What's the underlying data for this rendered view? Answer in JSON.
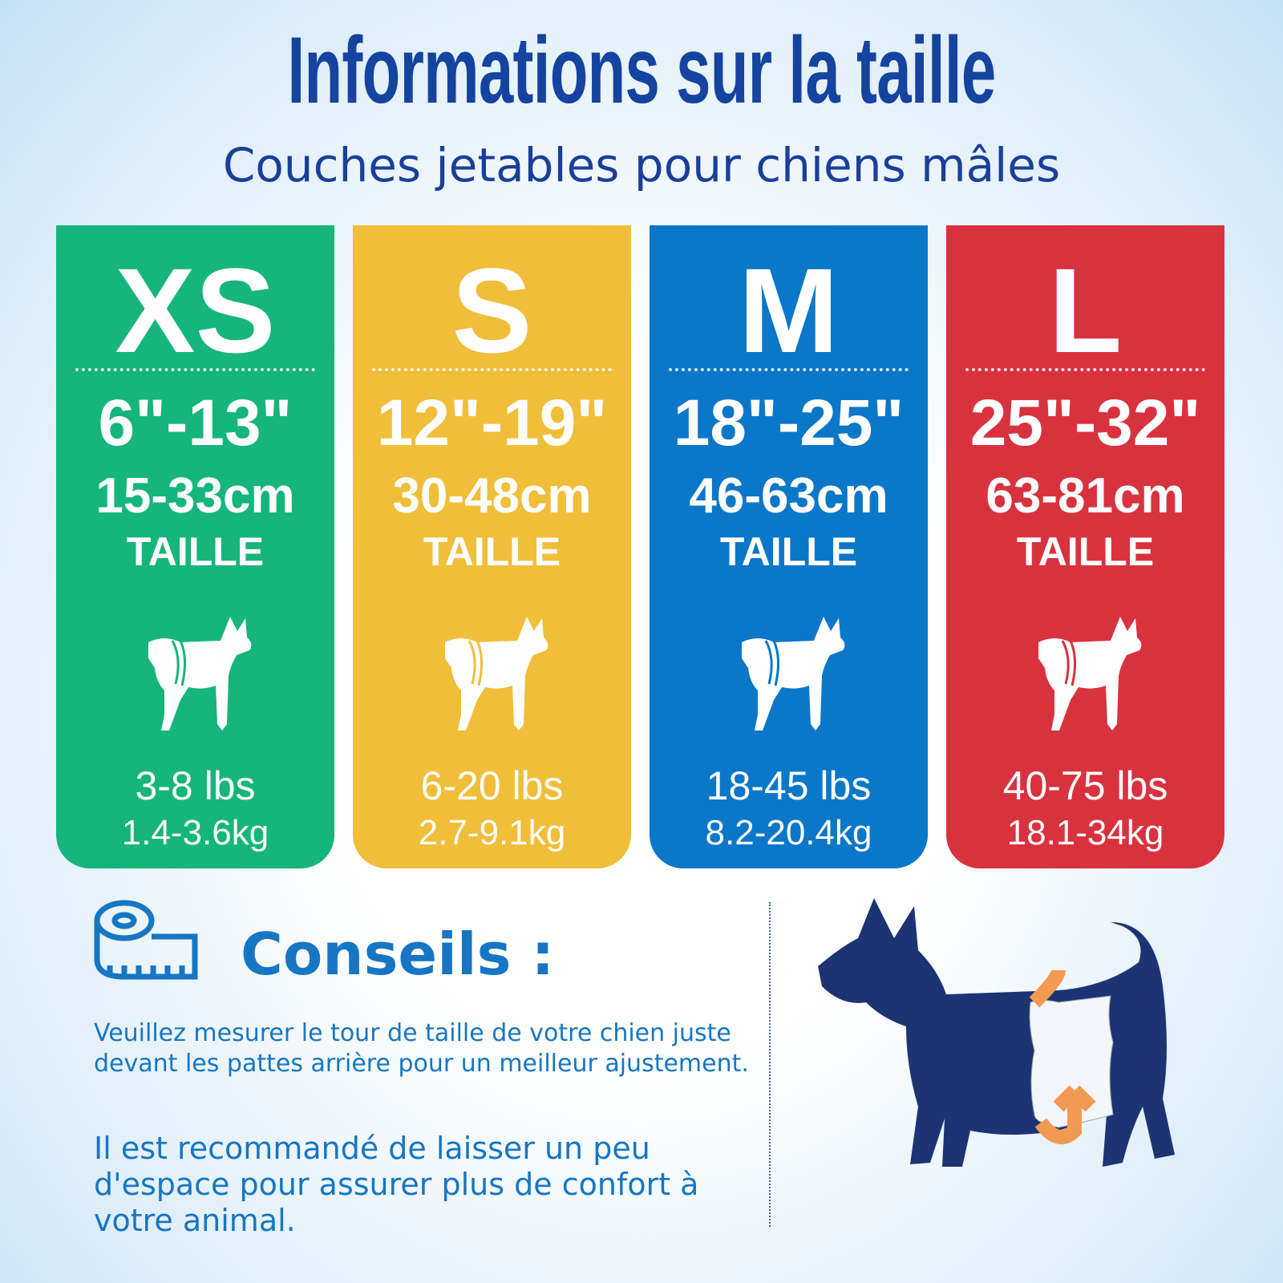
{
  "header": {
    "title": "Informations sur la taille",
    "subtitle": "Couches jetables pour chiens mâles"
  },
  "sizes": [
    {
      "size": "XS",
      "inches": "6\"-13\"",
      "cm": "15-33cm",
      "label": "TAILLE",
      "lbs": "3-8 lbs",
      "kg": "1.4-3.6kg",
      "color": "#15b57b"
    },
    {
      "size": "S",
      "inches": "12\"-19\"",
      "cm": "30-48cm",
      "label": "TAILLE",
      "lbs": "6-20 lbs",
      "kg": "2.7-9.1kg",
      "color": "#f1be3a"
    },
    {
      "size": "M",
      "inches": "18\"-25\"",
      "cm": "46-63cm",
      "label": "TAILLE",
      "lbs": "18-45 lbs",
      "kg": "8.2-20.4kg",
      "color": "#0b77c9"
    },
    {
      "size": "L",
      "inches": "25\"-32\"",
      "cm": "63-81cm",
      "label": "TAILLE",
      "lbs": "40-75 lbs",
      "kg": "18.1-34kg",
      "color": "#d9323f"
    }
  ],
  "tips": {
    "heading": "Conseils :",
    "paragraphs": [
      "Veuillez mesurer le tour de taille de votre chien juste devant les pattes arrière pour un meilleur ajustement.",
      "Il est recommandé de laisser un peu d'espace pour assurer plus de confort à votre animal."
    ]
  }
}
